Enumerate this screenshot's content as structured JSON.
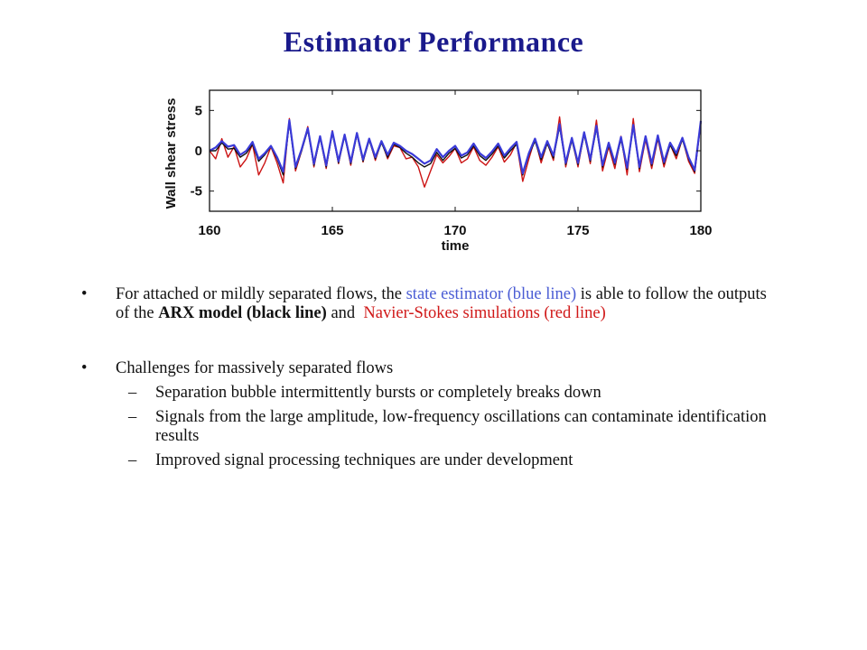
{
  "slide": {
    "title": "Estimator Performance"
  },
  "colors": {
    "title": "#1a1a8c",
    "estimator": "#3a3ad8",
    "arx": "#111111",
    "navier_stokes": "#cc1414"
  },
  "chart_data": {
    "type": "line",
    "xlabel": "time",
    "ylabel": "Wall shear stress",
    "xlim": [
      160,
      180
    ],
    "ylim": [
      -7.5,
      7.5
    ],
    "xticks": [
      "160",
      "165",
      "170",
      "175",
      "180"
    ],
    "yticks": [
      "5",
      "0",
      "-5"
    ],
    "grid": false,
    "x": [
      160.0,
      160.25,
      160.5,
      160.75,
      161.0,
      161.25,
      161.5,
      161.75,
      162.0,
      162.25,
      162.5,
      162.75,
      163.0,
      163.25,
      163.5,
      163.75,
      164.0,
      164.25,
      164.5,
      164.75,
      165.0,
      165.25,
      165.5,
      165.75,
      166.0,
      166.25,
      166.5,
      166.75,
      167.0,
      167.25,
      167.5,
      167.75,
      168.0,
      168.25,
      168.5,
      168.75,
      169.0,
      169.25,
      169.5,
      169.75,
      170.0,
      170.25,
      170.5,
      170.75,
      171.0,
      171.25,
      171.5,
      171.75,
      172.0,
      172.25,
      172.5,
      172.75,
      173.0,
      173.25,
      173.5,
      173.75,
      174.0,
      174.25,
      174.5,
      174.75,
      175.0,
      175.25,
      175.5,
      175.75,
      176.0,
      176.25,
      176.5,
      176.75,
      177.0,
      177.25,
      177.5,
      177.75,
      178.0,
      178.25,
      178.5,
      178.75,
      179.0,
      179.25,
      179.5,
      179.75,
      180.0
    ],
    "series": [
      {
        "name": "Navier-Stokes simulations",
        "color": "#cc1414",
        "values": [
          0.0,
          -1.0,
          1.5,
          -0.8,
          0.5,
          -2.0,
          -1.0,
          0.8,
          -3.0,
          -1.5,
          0.5,
          -1.5,
          -4.0,
          4.0,
          -2.5,
          0.0,
          3.0,
          -2.0,
          1.8,
          -2.2,
          2.5,
          -1.6,
          2.0,
          -1.8,
          2.2,
          -1.4,
          1.5,
          -1.2,
          1.2,
          -1.0,
          0.6,
          0.4,
          -1.0,
          -0.8,
          -2.0,
          -4.5,
          -2.5,
          -0.5,
          -1.5,
          -0.7,
          0.3,
          -1.5,
          -1.0,
          0.5,
          -1.2,
          -1.8,
          -0.8,
          0.5,
          -1.4,
          -0.5,
          1.0,
          -3.8,
          -1.0,
          1.5,
          -1.5,
          1.0,
          -1.2,
          4.2,
          -2.0,
          1.5,
          -2.0,
          2.2,
          -1.6,
          3.8,
          -2.5,
          0.5,
          -2.2,
          1.8,
          -3.0,
          4.0,
          -2.6,
          1.4,
          -2.2,
          1.5,
          -2.0,
          0.8,
          -1.0,
          1.5,
          -1.3,
          -2.8,
          3.5
        ]
      },
      {
        "name": "ARX model",
        "color": "#111111",
        "values": [
          0.0,
          0.0,
          1.0,
          0.2,
          0.3,
          -0.8,
          -0.3,
          0.8,
          -1.3,
          -0.5,
          0.5,
          -1.0,
          -3.0,
          3.5,
          -2.2,
          0.0,
          2.6,
          -1.8,
          1.6,
          -2.0,
          2.2,
          -1.5,
          1.8,
          -1.6,
          2.0,
          -1.3,
          1.3,
          -1.0,
          1.0,
          -0.8,
          0.8,
          0.4,
          -0.3,
          -0.8,
          -1.5,
          -2.0,
          -1.6,
          -0.2,
          -1.2,
          -0.3,
          0.3,
          -0.9,
          -0.5,
          0.6,
          -0.6,
          -1.2,
          -0.4,
          0.6,
          -0.9,
          0.0,
          0.8,
          -3.0,
          -0.5,
          1.2,
          -1.1,
          0.9,
          -0.9,
          3.0,
          -1.7,
          1.3,
          -1.7,
          2.0,
          -1.3,
          2.8,
          -2.0,
          0.7,
          -1.7,
          1.4,
          -2.3,
          3.0,
          -2.2,
          1.6,
          -1.8,
          1.6,
          -1.6,
          0.7,
          -0.6,
          1.4,
          -1.0,
          -2.6,
          3.5
        ]
      },
      {
        "name": "state estimator",
        "color": "#3a3ad8",
        "values": [
          0.0,
          0.4,
          1.2,
          0.5,
          0.7,
          -0.5,
          0.0,
          1.1,
          -1.0,
          -0.3,
          0.6,
          -0.8,
          -2.6,
          3.8,
          -2.0,
          0.2,
          2.8,
          -1.6,
          1.8,
          -1.8,
          2.4,
          -1.3,
          2.0,
          -1.4,
          2.2,
          -1.1,
          1.5,
          -0.8,
          1.2,
          -0.5,
          1.0,
          0.6,
          0.0,
          -0.4,
          -1.0,
          -1.6,
          -1.2,
          0.2,
          -0.8,
          0.0,
          0.6,
          -0.6,
          -0.2,
          0.9,
          -0.3,
          -0.9,
          -0.1,
          0.9,
          -0.6,
          0.3,
          1.1,
          -2.8,
          -0.3,
          1.5,
          -0.8,
          1.2,
          -0.6,
          3.3,
          -1.5,
          1.6,
          -1.5,
          2.3,
          -1.1,
          3.1,
          -1.8,
          1.0,
          -1.5,
          1.7,
          -2.1,
          3.2,
          -2.0,
          1.8,
          -1.6,
          1.9,
          -1.4,
          1.0,
          -0.3,
          1.6,
          -0.8,
          -2.4,
          3.7
        ]
      }
    ]
  },
  "bullets": [
    {
      "marker": "•",
      "parts": [
        {
          "text": "For attached or mildly separated flows, the ",
          "style": "plain"
        },
        {
          "text": "state estimator (blue line)",
          "style": "blue"
        },
        {
          "text": " is able to follow the outputs of the ",
          "style": "plain"
        },
        {
          "text": "ARX model (black line)",
          "style": "bold"
        },
        {
          "text": " and  ",
          "style": "plain"
        },
        {
          "text": "Navier-Stokes simulations (red line)",
          "style": "red"
        }
      ]
    },
    {
      "marker": "•",
      "text": "Challenges for massively separated flows",
      "subitems": [
        {
          "marker": "–",
          "text": "Separation bubble intermittently bursts or completely breaks down"
        },
        {
          "marker": "–",
          "text": "Signals from the large amplitude, low-frequency oscillations can contaminate identification results"
        },
        {
          "marker": "–",
          "text": "Improved signal processing techniques are under development"
        }
      ]
    }
  ]
}
